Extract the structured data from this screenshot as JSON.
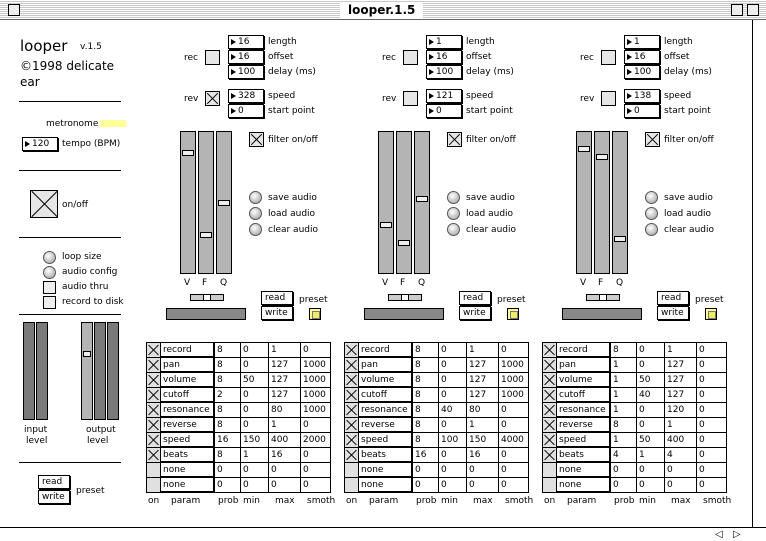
{
  "window": {
    "title": "looper.1.5"
  },
  "sidebar": {
    "app_name": "looper",
    "version": "v.1.5",
    "copyright": "©1998 delicate",
    "copyright2": "ear",
    "metronome_label": "metronome",
    "tempo_value": "120",
    "tempo_label": "tempo (BPM)",
    "onoff_label": "on/off",
    "menu": [
      "loop size",
      "audio config",
      "audio thru",
      "record to disk"
    ],
    "input_label": "input",
    "input_label2": "level",
    "output_label": "output",
    "output_label2": "level",
    "read_label": "read",
    "write_label": "write",
    "preset_label": "preset"
  },
  "channel_common": {
    "rec_label": "rec",
    "rev_label": "rev",
    "length_label": "length",
    "offset_label": "offset",
    "delay_label": "delay (ms)",
    "speed_label": "speed",
    "start_label": "start point",
    "filter_label": "filter on/off",
    "save_audio": "save audio",
    "load_audio": "load audio",
    "clear_audio": "clear audio",
    "slider_labels": [
      "V",
      "F",
      "Q"
    ],
    "read_label": "read",
    "write_label": "write",
    "preset_label": "preset",
    "headers": [
      "on",
      "param",
      "prob",
      "min",
      "max",
      "smoth"
    ]
  },
  "channels": [
    {
      "length": "16",
      "offset": "16",
      "delay": "100",
      "speed": "328",
      "start": "0",
      "rec": false,
      "rev": true,
      "filter": true,
      "rows": [
        {
          "on": true,
          "param": "record",
          "prob": "8",
          "min": "0",
          "max": "1",
          "smoth": "0"
        },
        {
          "on": true,
          "param": "pan",
          "prob": "8",
          "min": "0",
          "max": "127",
          "smoth": "1000"
        },
        {
          "on": true,
          "param": "volume",
          "prob": "8",
          "min": "50",
          "max": "127",
          "smoth": "1000"
        },
        {
          "on": true,
          "param": "cutoff",
          "prob": "2",
          "min": "0",
          "max": "127",
          "smoth": "1000"
        },
        {
          "on": true,
          "param": "resonance",
          "prob": "8",
          "min": "0",
          "max": "80",
          "smoth": "1000"
        },
        {
          "on": true,
          "param": "reverse",
          "prob": "8",
          "min": "0",
          "max": "1",
          "smoth": "0"
        },
        {
          "on": true,
          "param": "speed",
          "prob": "16",
          "min": "150",
          "max": "400",
          "smoth": "2000"
        },
        {
          "on": true,
          "param": "beats",
          "prob": "8",
          "min": "1",
          "max": "16",
          "smoth": "0"
        },
        {
          "on": false,
          "param": "none",
          "prob": "0",
          "min": "0",
          "max": "0",
          "smoth": "0"
        },
        {
          "on": false,
          "param": "none",
          "prob": "0",
          "min": "0",
          "max": "0",
          "smoth": "0"
        }
      ]
    },
    {
      "length": "1",
      "offset": "16",
      "delay": "100",
      "speed": "121",
      "start": "0",
      "rec": false,
      "rev": false,
      "filter": true,
      "rows": [
        {
          "on": true,
          "param": "record",
          "prob": "8",
          "min": "0",
          "max": "1",
          "smoth": "0"
        },
        {
          "on": true,
          "param": "pan",
          "prob": "8",
          "min": "0",
          "max": "127",
          "smoth": "1000"
        },
        {
          "on": true,
          "param": "volume",
          "prob": "8",
          "min": "0",
          "max": "127",
          "smoth": "1000"
        },
        {
          "on": true,
          "param": "cutoff",
          "prob": "8",
          "min": "0",
          "max": "127",
          "smoth": "1000"
        },
        {
          "on": true,
          "param": "resonance",
          "prob": "8",
          "min": "40",
          "max": "80",
          "smoth": "0"
        },
        {
          "on": true,
          "param": "reverse",
          "prob": "8",
          "min": "0",
          "max": "1",
          "smoth": "0"
        },
        {
          "on": true,
          "param": "speed",
          "prob": "8",
          "min": "100",
          "max": "150",
          "smoth": "4000"
        },
        {
          "on": true,
          "param": "beats",
          "prob": "16",
          "min": "0",
          "max": "16",
          "smoth": "0"
        },
        {
          "on": false,
          "param": "none",
          "prob": "0",
          "min": "0",
          "max": "0",
          "smoth": "0"
        },
        {
          "on": false,
          "param": "none",
          "prob": "0",
          "min": "0",
          "max": "0",
          "smoth": "0"
        }
      ]
    },
    {
      "length": "1",
      "offset": "16",
      "delay": "100",
      "speed": "138",
      "start": "0",
      "rec": false,
      "rev": false,
      "filter": true,
      "rows": [
        {
          "on": true,
          "param": "record",
          "prob": "8",
          "min": "0",
          "max": "1",
          "smoth": "0"
        },
        {
          "on": true,
          "param": "pan",
          "prob": "1",
          "min": "0",
          "max": "127",
          "smoth": "0"
        },
        {
          "on": true,
          "param": "volume",
          "prob": "1",
          "min": "50",
          "max": "127",
          "smoth": "0"
        },
        {
          "on": true,
          "param": "cutoff",
          "prob": "1",
          "min": "40",
          "max": "127",
          "smoth": "0"
        },
        {
          "on": true,
          "param": "resonance",
          "prob": "1",
          "min": "0",
          "max": "120",
          "smoth": "0"
        },
        {
          "on": true,
          "param": "reverse",
          "prob": "8",
          "min": "0",
          "max": "1",
          "smoth": "0"
        },
        {
          "on": true,
          "param": "speed",
          "prob": "1",
          "min": "50",
          "max": "400",
          "smoth": "0"
        },
        {
          "on": true,
          "param": "beats",
          "prob": "4",
          "min": "1",
          "max": "4",
          "smoth": "0"
        },
        {
          "on": false,
          "param": "none",
          "prob": "0",
          "min": "0",
          "max": "0",
          "smoth": "0"
        },
        {
          "on": false,
          "param": "none",
          "prob": "0",
          "min": "0",
          "max": "0",
          "smoth": "0"
        }
      ]
    }
  ]
}
